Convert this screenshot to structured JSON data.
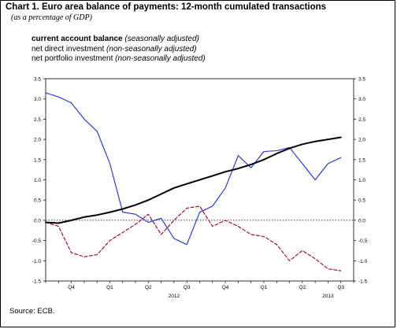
{
  "title": "Chart 1. Euro area balance of payments: 12-month cumulated transactions",
  "subtitle": "(as a percentage of GDP)",
  "source": "Source: ECB.",
  "chart_data": {
    "type": "line",
    "ylim": [
      -1.5,
      3.5
    ],
    "yticks": [
      -1.5,
      -1.0,
      -0.5,
      0.0,
      0.5,
      1.0,
      1.5,
      2.0,
      2.5,
      3.0,
      3.5
    ],
    "ytick_labels": [
      "-1.5",
      "-1.0",
      "-0.5",
      "0.0",
      "0.5",
      "1.0",
      "1.5",
      "2.0",
      "2.5",
      "3.0",
      "3.5"
    ],
    "right_ytick_labels": [
      "-1.5",
      "-1.0",
      "-0.5",
      "0.0",
      "0.5",
      "1.0",
      "1.5",
      "2.0",
      "2.5",
      "3.0",
      "3.5"
    ],
    "x_quarters": [
      "Q4",
      "Q1",
      "Q2",
      "Q3",
      "Q4",
      "Q1",
      "Q2",
      "Q3"
    ],
    "x_quarter_positions": [
      2,
      5,
      8,
      11,
      14,
      17,
      20,
      23
    ],
    "x_years": [
      {
        "label": "2012",
        "position": 10
      },
      {
        "label": "2013",
        "position": 22
      }
    ],
    "x_range": [
      0,
      24
    ],
    "zero_line": "dotted",
    "legend_position": "top-left",
    "series": [
      {
        "name": "current account balance",
        "name_note": "(seasonally adjusted)",
        "color": "#000000",
        "style": "solid-thick",
        "x": [
          0,
          1,
          2,
          3,
          4,
          5,
          6,
          7,
          8,
          9,
          10,
          11,
          12,
          13,
          14,
          15,
          16,
          17,
          18,
          19,
          20,
          21,
          22,
          23
        ],
        "values": [
          -0.05,
          -0.07,
          0.0,
          0.08,
          0.13,
          0.2,
          0.28,
          0.38,
          0.5,
          0.65,
          0.8,
          0.9,
          1.0,
          1.1,
          1.2,
          1.28,
          1.38,
          1.5,
          1.65,
          1.78,
          1.88,
          1.95,
          2.0,
          2.05
        ]
      },
      {
        "name": "net direct investment",
        "name_note": "(non-seasonally adjusted)",
        "color": "#a0001e",
        "style": "dashed",
        "x": [
          0,
          1,
          2,
          3,
          4,
          5,
          6,
          7,
          8,
          9,
          10,
          11,
          12,
          13,
          14,
          15,
          16,
          17,
          18,
          19,
          20,
          21,
          22,
          23
        ],
        "values": [
          -0.05,
          -0.15,
          -0.8,
          -0.9,
          -0.85,
          -0.5,
          -0.3,
          -0.1,
          0.15,
          -0.35,
          0.0,
          0.3,
          0.35,
          -0.15,
          0.0,
          -0.15,
          -0.35,
          -0.4,
          -0.6,
          -1.0,
          -0.75,
          -0.95,
          -1.2,
          -1.25
        ]
      },
      {
        "name": "net portfolio investment",
        "name_note": "(non-seasonally adjusted)",
        "color": "#1a2fd6",
        "style": "solid",
        "x": [
          0,
          1,
          2,
          3,
          4,
          5,
          6,
          7,
          8,
          9,
          10,
          11,
          12,
          13,
          14,
          15,
          16,
          17,
          18,
          19,
          20,
          21,
          22,
          23
        ],
        "values": [
          3.15,
          3.05,
          2.9,
          2.5,
          2.2,
          1.4,
          0.2,
          0.15,
          -0.05,
          0.05,
          -0.45,
          -0.6,
          0.2,
          0.35,
          0.8,
          1.6,
          1.3,
          1.7,
          1.72,
          1.8,
          1.4,
          1.0,
          1.4,
          1.55
        ]
      }
    ]
  }
}
